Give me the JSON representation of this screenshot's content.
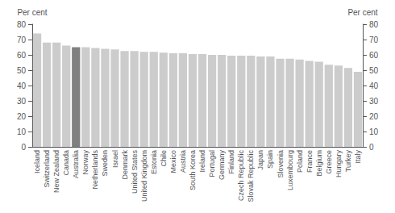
{
  "chart_data": {
    "type": "bar",
    "categories": [
      "Iceland",
      "Switzerland",
      "New Zealand",
      "Canada",
      "Australia",
      "Norway",
      "Netherlands",
      "Sweden",
      "Israel",
      "Denmark",
      "United States",
      "United Kingdom",
      "Estonia",
      "Chile",
      "Mexico",
      "Austria",
      "South Korea",
      "Ireland",
      "Portugal",
      "Germany",
      "Finland",
      "Czech Republic",
      "Slovak Republic",
      "Japan",
      "Spain",
      "Slovenia",
      "Luxembourg",
      "Poland",
      "France",
      "Belgium",
      "Greece",
      "Hungary",
      "Turkey",
      "Italy"
    ],
    "values": [
      74,
      68,
      68,
      66,
      65,
      65,
      64.5,
      64,
      63.5,
      62.5,
      62.5,
      62,
      62,
      61.5,
      61,
      61,
      60.5,
      60.5,
      60,
      60,
      59.5,
      59.5,
      59.5,
      59,
      59,
      57.5,
      57.5,
      57,
      56,
      55.5,
      53.5,
      53,
      51.5,
      49
    ],
    "colors": [
      "#cccccc",
      "#cccccc",
      "#cccccc",
      "#cccccc",
      "#808080",
      "#cccccc",
      "#cccccc",
      "#cccccc",
      "#cccccc",
      "#cccccc",
      "#cccccc",
      "#cccccc",
      "#cccccc",
      "#cccccc",
      "#cccccc",
      "#cccccc",
      "#cccccc",
      "#cccccc",
      "#cccccc",
      "#cccccc",
      "#cccccc",
      "#cccccc",
      "#cccccc",
      "#cccccc",
      "#cccccc",
      "#cccccc",
      "#cccccc",
      "#cccccc",
      "#cccccc",
      "#cccccc",
      "#cccccc",
      "#cccccc",
      "#cccccc",
      "#cccccc"
    ],
    "ylabel": "Per cent",
    "y2label": "Per cent",
    "ylim": [
      0,
      80
    ],
    "yticks": [
      0,
      10,
      20,
      30,
      40,
      50,
      60,
      70,
      80
    ],
    "y2lim": [
      0,
      80
    ],
    "y2ticks": [
      0,
      10,
      20,
      30,
      40,
      50,
      60,
      70,
      80
    ],
    "grid": false
  }
}
